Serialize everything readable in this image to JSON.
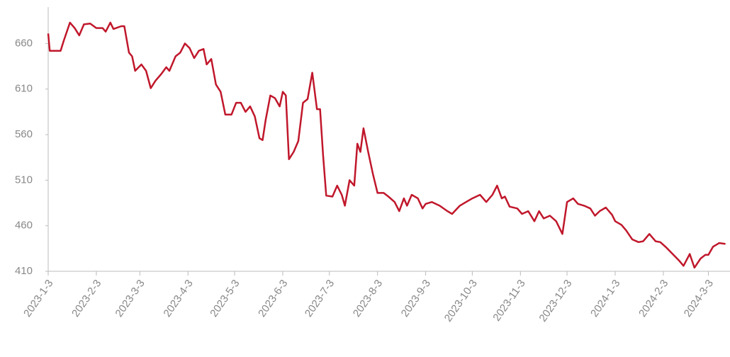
{
  "chart_data": {
    "type": "line",
    "x": [
      "2023-1-3",
      "2023-1-4",
      "2023-1-9",
      "2023-1-11",
      "2023-1-13",
      "2023-1-17",
      "2023-1-20",
      "2023-1-23",
      "2023-1-26",
      "2023-1-30",
      "2023-2-3",
      "2023-2-7",
      "2023-2-9",
      "2023-2-12",
      "2023-2-14",
      "2023-2-19",
      "2023-2-21",
      "2023-2-24",
      "2023-2-26",
      "2023-2-28",
      "2023-3-4",
      "2023-3-7",
      "2023-3-10",
      "2023-3-13",
      "2023-3-17",
      "2023-3-20",
      "2023-3-22",
      "2023-3-26",
      "2023-3-29",
      "2023-4-1",
      "2023-4-4",
      "2023-4-7",
      "2023-4-10",
      "2023-4-13",
      "2023-4-15",
      "2023-4-18",
      "2023-4-21",
      "2023-4-24",
      "2023-4-27",
      "2023-5-1",
      "2023-5-4",
      "2023-5-7",
      "2023-5-10",
      "2023-5-13",
      "2023-5-16",
      "2023-5-19",
      "2023-5-21",
      "2023-5-23",
      "2023-5-26",
      "2023-5-29",
      "2023-6-1",
      "2023-6-3",
      "2023-6-5",
      "2023-6-7",
      "2023-6-10",
      "2023-6-13",
      "2023-6-16",
      "2023-6-19",
      "2023-6-22",
      "2023-6-25",
      "2023-6-27",
      "2023-6-29",
      "2023-7-1",
      "2023-7-5",
      "2023-7-8",
      "2023-7-11",
      "2023-7-13",
      "2023-7-16",
      "2023-7-19",
      "2023-7-21",
      "2023-7-23",
      "2023-7-25",
      "2023-7-28",
      "2023-7-31",
      "2023-8-3",
      "2023-8-7",
      "2023-8-10",
      "2023-8-14",
      "2023-8-17",
      "2023-8-20",
      "2023-8-22",
      "2023-8-25",
      "2023-8-29",
      "2023-9-1",
      "2023-9-3",
      "2023-9-7",
      "2023-9-12",
      "2023-9-17",
      "2023-9-20",
      "2023-9-25",
      "2023-9-29",
      "2023-10-3",
      "2023-10-8",
      "2023-10-12",
      "2023-10-16",
      "2023-10-19",
      "2023-10-22",
      "2023-10-24",
      "2023-10-27",
      "2023-11-1",
      "2023-11-4",
      "2023-11-8",
      "2023-11-12",
      "2023-11-15",
      "2023-11-18",
      "2023-11-22",
      "2023-11-26",
      "2023-11-30",
      "2023-12-3",
      "2023-12-7",
      "2023-12-10",
      "2023-12-14",
      "2023-12-18",
      "2023-12-21",
      "2023-12-24",
      "2023-12-28",
      "2024-1-1",
      "2024-1-3",
      "2024-1-7",
      "2024-1-10",
      "2024-1-14",
      "2024-1-18",
      "2024-1-21",
      "2024-1-25",
      "2024-1-29",
      "2024-2-1",
      "2024-2-5",
      "2024-2-9",
      "2024-2-13",
      "2024-2-16",
      "2024-2-20",
      "2024-2-23",
      "2024-2-27",
      "2024-3-1",
      "2024-3-3",
      "2024-3-6",
      "2024-3-10",
      "2024-3-14"
    ],
    "series": [
      {
        "color": "#c0172b",
        "values": [
          671,
          652,
          652,
          652,
          663,
          683,
          677,
          669,
          681,
          682,
          677,
          677,
          673,
          683,
          676,
          679,
          679,
          650,
          646,
          630,
          637,
          630,
          611,
          619,
          627,
          634,
          630,
          646,
          650,
          660,
          655,
          644,
          652,
          654,
          637,
          643,
          615,
          607,
          582,
          582,
          595,
          595,
          585,
          591,
          580,
          556,
          554,
          576,
          603,
          600,
          591,
          607,
          603,
          533,
          541,
          553,
          595,
          599,
          628,
          588,
          588,
          537,
          493,
          492,
          504,
          494,
          482,
          510,
          504,
          550,
          541,
          567,
          541,
          517,
          496,
          496,
          492,
          486,
          476,
          490,
          482,
          494,
          490,
          479,
          484,
          486,
          482,
          476,
          473,
          482,
          486,
          490,
          494,
          486,
          494,
          504,
          490,
          492,
          481,
          479,
          473,
          476,
          465,
          476,
          468,
          471,
          465,
          451,
          486,
          490,
          484,
          482,
          479,
          471,
          476,
          480,
          472,
          465,
          461,
          455,
          445,
          442,
          443,
          451,
          443,
          442,
          436,
          429,
          422,
          416,
          429,
          414,
          424,
          428,
          428,
          437,
          441,
          440
        ]
      }
    ],
    "xlim": [
      "2023-1-3",
      "2024-3-16"
    ],
    "xticks": [
      "2023-1-3",
      "2023-2-3",
      "2023-3-3",
      "2023-4-3",
      "2023-5-3",
      "2023-6-3",
      "2023-7-3",
      "2023-8-3",
      "2023-9-3",
      "2023-10-3",
      "2023-11-3",
      "2023-12-3",
      "2024-1-3",
      "2024-2-3",
      "2024-3-3"
    ],
    "ylim": [
      410,
      700
    ],
    "yticks": [
      410,
      460,
      510,
      560,
      610,
      660
    ],
    "grid": false
  }
}
